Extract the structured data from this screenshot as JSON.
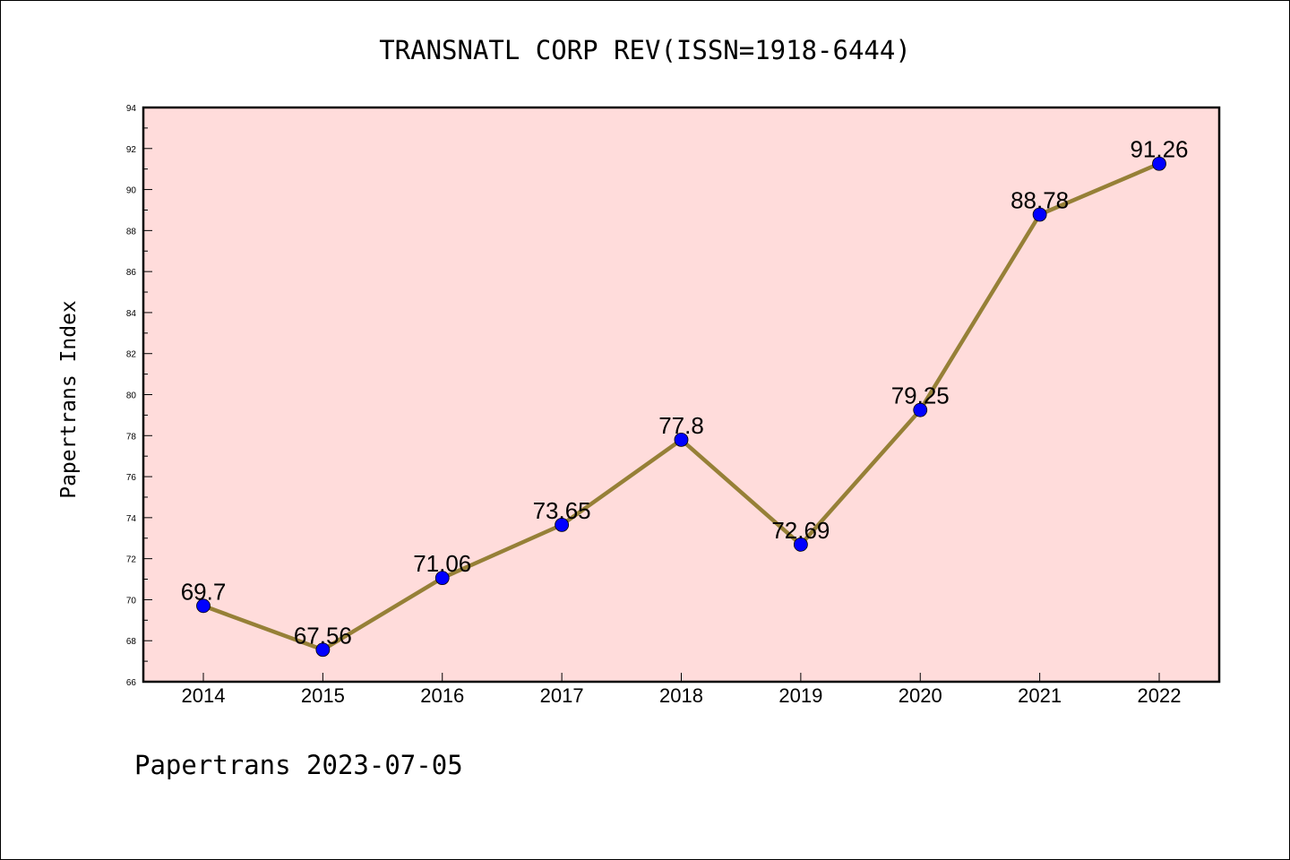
{
  "chart_data": {
    "type": "line",
    "title": "TRANSNATL CORP REV(ISSN=1918-6444)",
    "xlabel": "",
    "ylabel": "Papertrans Index",
    "categories": [
      "2014",
      "2015",
      "2016",
      "2017",
      "2018",
      "2019",
      "2020",
      "2021",
      "2022"
    ],
    "series": [
      {
        "values": [
          69.7,
          67.56,
          71.06,
          73.65,
          77.8,
          72.69,
          79.25,
          88.78,
          91.26
        ],
        "labels": [
          "69.7",
          "67.56",
          "71.06",
          "73.65",
          "77.8",
          "72.69",
          "79.25",
          "88.78",
          "91.26"
        ],
        "line_color": "#968037",
        "marker_color": "#0000ff"
      }
    ],
    "ylim": [
      66,
      94
    ],
    "yticks": [
      66,
      68,
      70,
      72,
      74,
      76,
      78,
      80,
      82,
      84,
      86,
      88,
      90,
      92,
      94
    ],
    "ytick_labels": [
      "66",
      "68",
      "70",
      "72",
      "74",
      "76",
      "78",
      "80",
      "82",
      "84",
      "86",
      "88",
      "90",
      "92",
      "94"
    ],
    "grid": false,
    "plot_background": "#ffdcdb",
    "footer": "Papertrans 2023-07-05"
  }
}
